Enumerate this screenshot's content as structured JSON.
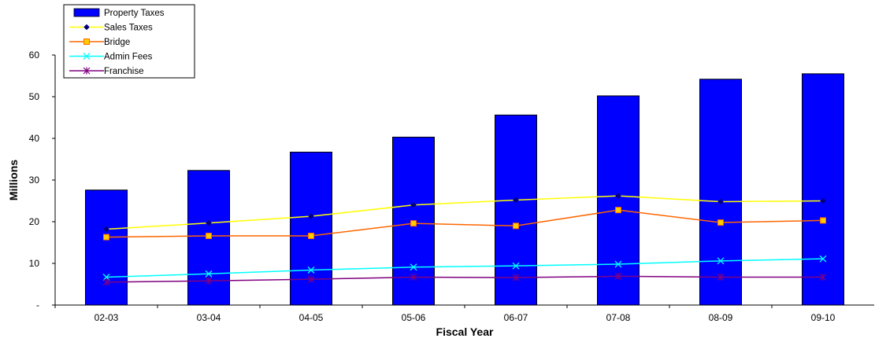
{
  "chart_data": {
    "type": "bar",
    "title": "",
    "xlabel": "Fiscal Year",
    "ylabel": "Millions",
    "categories": [
      "02-03",
      "03-04",
      "04-05",
      "05-06",
      "06-07",
      "07-08",
      "08-09",
      "09-10"
    ],
    "ylim": [
      0,
      60
    ],
    "yticks": [
      0,
      10,
      20,
      30,
      40,
      50,
      60
    ],
    "ytick_labels": [
      "-",
      "10",
      "20",
      "30",
      "40",
      "50",
      "60"
    ],
    "grid": false,
    "legend": "top-left",
    "series": [
      {
        "name": "Property Taxes",
        "type": "bar",
        "color": "#0000ff",
        "values": [
          27.6,
          32.3,
          36.7,
          40.3,
          45.6,
          50.2,
          54.2,
          55.5
        ]
      },
      {
        "name": "Sales Taxes",
        "type": "line",
        "color": "#ffff00",
        "marker": "diamond",
        "marker_color": "#000080",
        "values": [
          18.2,
          19.7,
          21.3,
          24.0,
          25.2,
          26.2,
          24.8,
          25.0
        ]
      },
      {
        "name": "Bridge",
        "type": "line",
        "color": "#ff6600",
        "marker": "square",
        "marker_color": "#ffcc00",
        "values": [
          16.3,
          16.6,
          16.6,
          19.6,
          19.0,
          22.8,
          19.8,
          20.3
        ]
      },
      {
        "name": "Admin Fees",
        "type": "line",
        "color": "#00ffff",
        "marker": "x",
        "marker_color": "#00ffff",
        "values": [
          6.7,
          7.5,
          8.4,
          9.1,
          9.4,
          9.8,
          10.6,
          11.1
        ]
      },
      {
        "name": "Franchise",
        "type": "line",
        "color": "#800080",
        "marker": "star",
        "marker_color": "#800080",
        "values": [
          5.5,
          5.8,
          6.2,
          6.7,
          6.6,
          6.9,
          6.7,
          6.7
        ]
      }
    ]
  }
}
